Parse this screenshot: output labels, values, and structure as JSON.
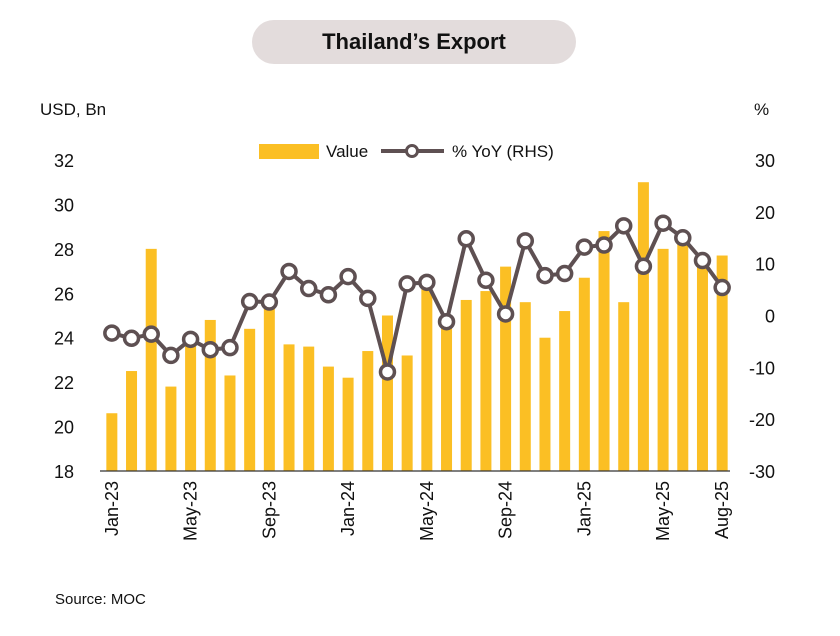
{
  "title": "Thailand’s Export",
  "source": "Source: MOC",
  "chart_data": {
    "type": "bar+line",
    "left_axis_unit": "USD, Bn",
    "right_axis_unit": "%",
    "left_ylim": [
      18,
      32
    ],
    "right_ylim": [
      -30,
      30
    ],
    "left_ticks": [
      "18",
      "20",
      "22",
      "24",
      "26",
      "28",
      "30",
      "32"
    ],
    "right_ticks": [
      "-30",
      "-20",
      "-10",
      "0",
      "10",
      "20",
      "30"
    ],
    "x_tick_labels": [
      "Jan-23",
      "May-23",
      "Sep-23",
      "Jan-24",
      "May-24",
      "Sep-24",
      "Jan-25",
      "May-25",
      "Aug-25"
    ],
    "x_tick_indices": [
      0,
      4,
      8,
      12,
      16,
      20,
      24,
      28,
      31
    ],
    "categories": [
      "Jan-23",
      "Feb-23",
      "Mar-23",
      "Apr-23",
      "May-23",
      "Jun-23",
      "Jul-23",
      "Aug-23",
      "Sep-23",
      "Oct-23",
      "Nov-23",
      "Dec-23",
      "Jan-24",
      "Feb-24",
      "Mar-24",
      "Apr-24",
      "May-24",
      "Jun-24",
      "Jul-24",
      "Aug-24",
      "Sep-24",
      "Oct-24",
      "Nov-24",
      "Dec-24",
      "Jan-25",
      "Feb-25",
      "Mar-25",
      "Apr-25",
      "May-25",
      "Jun-25",
      "Jul-25",
      "Aug-25"
    ],
    "series": [
      {
        "name": "Value",
        "kind": "bar",
        "axis": "left",
        "color": "#fbbf24",
        "values": [
          20.6,
          22.5,
          28.0,
          21.8,
          23.8,
          24.8,
          22.3,
          24.4,
          25.4,
          23.7,
          23.6,
          22.7,
          22.2,
          23.4,
          25.0,
          23.2,
          26.2,
          24.8,
          25.7,
          26.1,
          27.2,
          25.6,
          24.0,
          25.2,
          26.7,
          28.8,
          25.6,
          31.0,
          28.0,
          28.5,
          27.7,
          27.7
        ]
      },
      {
        "name": "% YoY (RHS)",
        "kind": "line",
        "axis": "right",
        "color": "#5e5052",
        "values": [
          -3.4,
          -4.4,
          -3.6,
          -7.7,
          -4.6,
          -6.6,
          -6.2,
          2.7,
          2.6,
          8.5,
          5.2,
          4.0,
          7.5,
          3.3,
          -10.9,
          6.1,
          6.4,
          -1.2,
          14.8,
          6.8,
          0.3,
          14.4,
          7.7,
          8.1,
          13.2,
          13.6,
          17.3,
          9.5,
          17.8,
          15.0,
          10.6,
          5.4
        ]
      }
    ]
  }
}
